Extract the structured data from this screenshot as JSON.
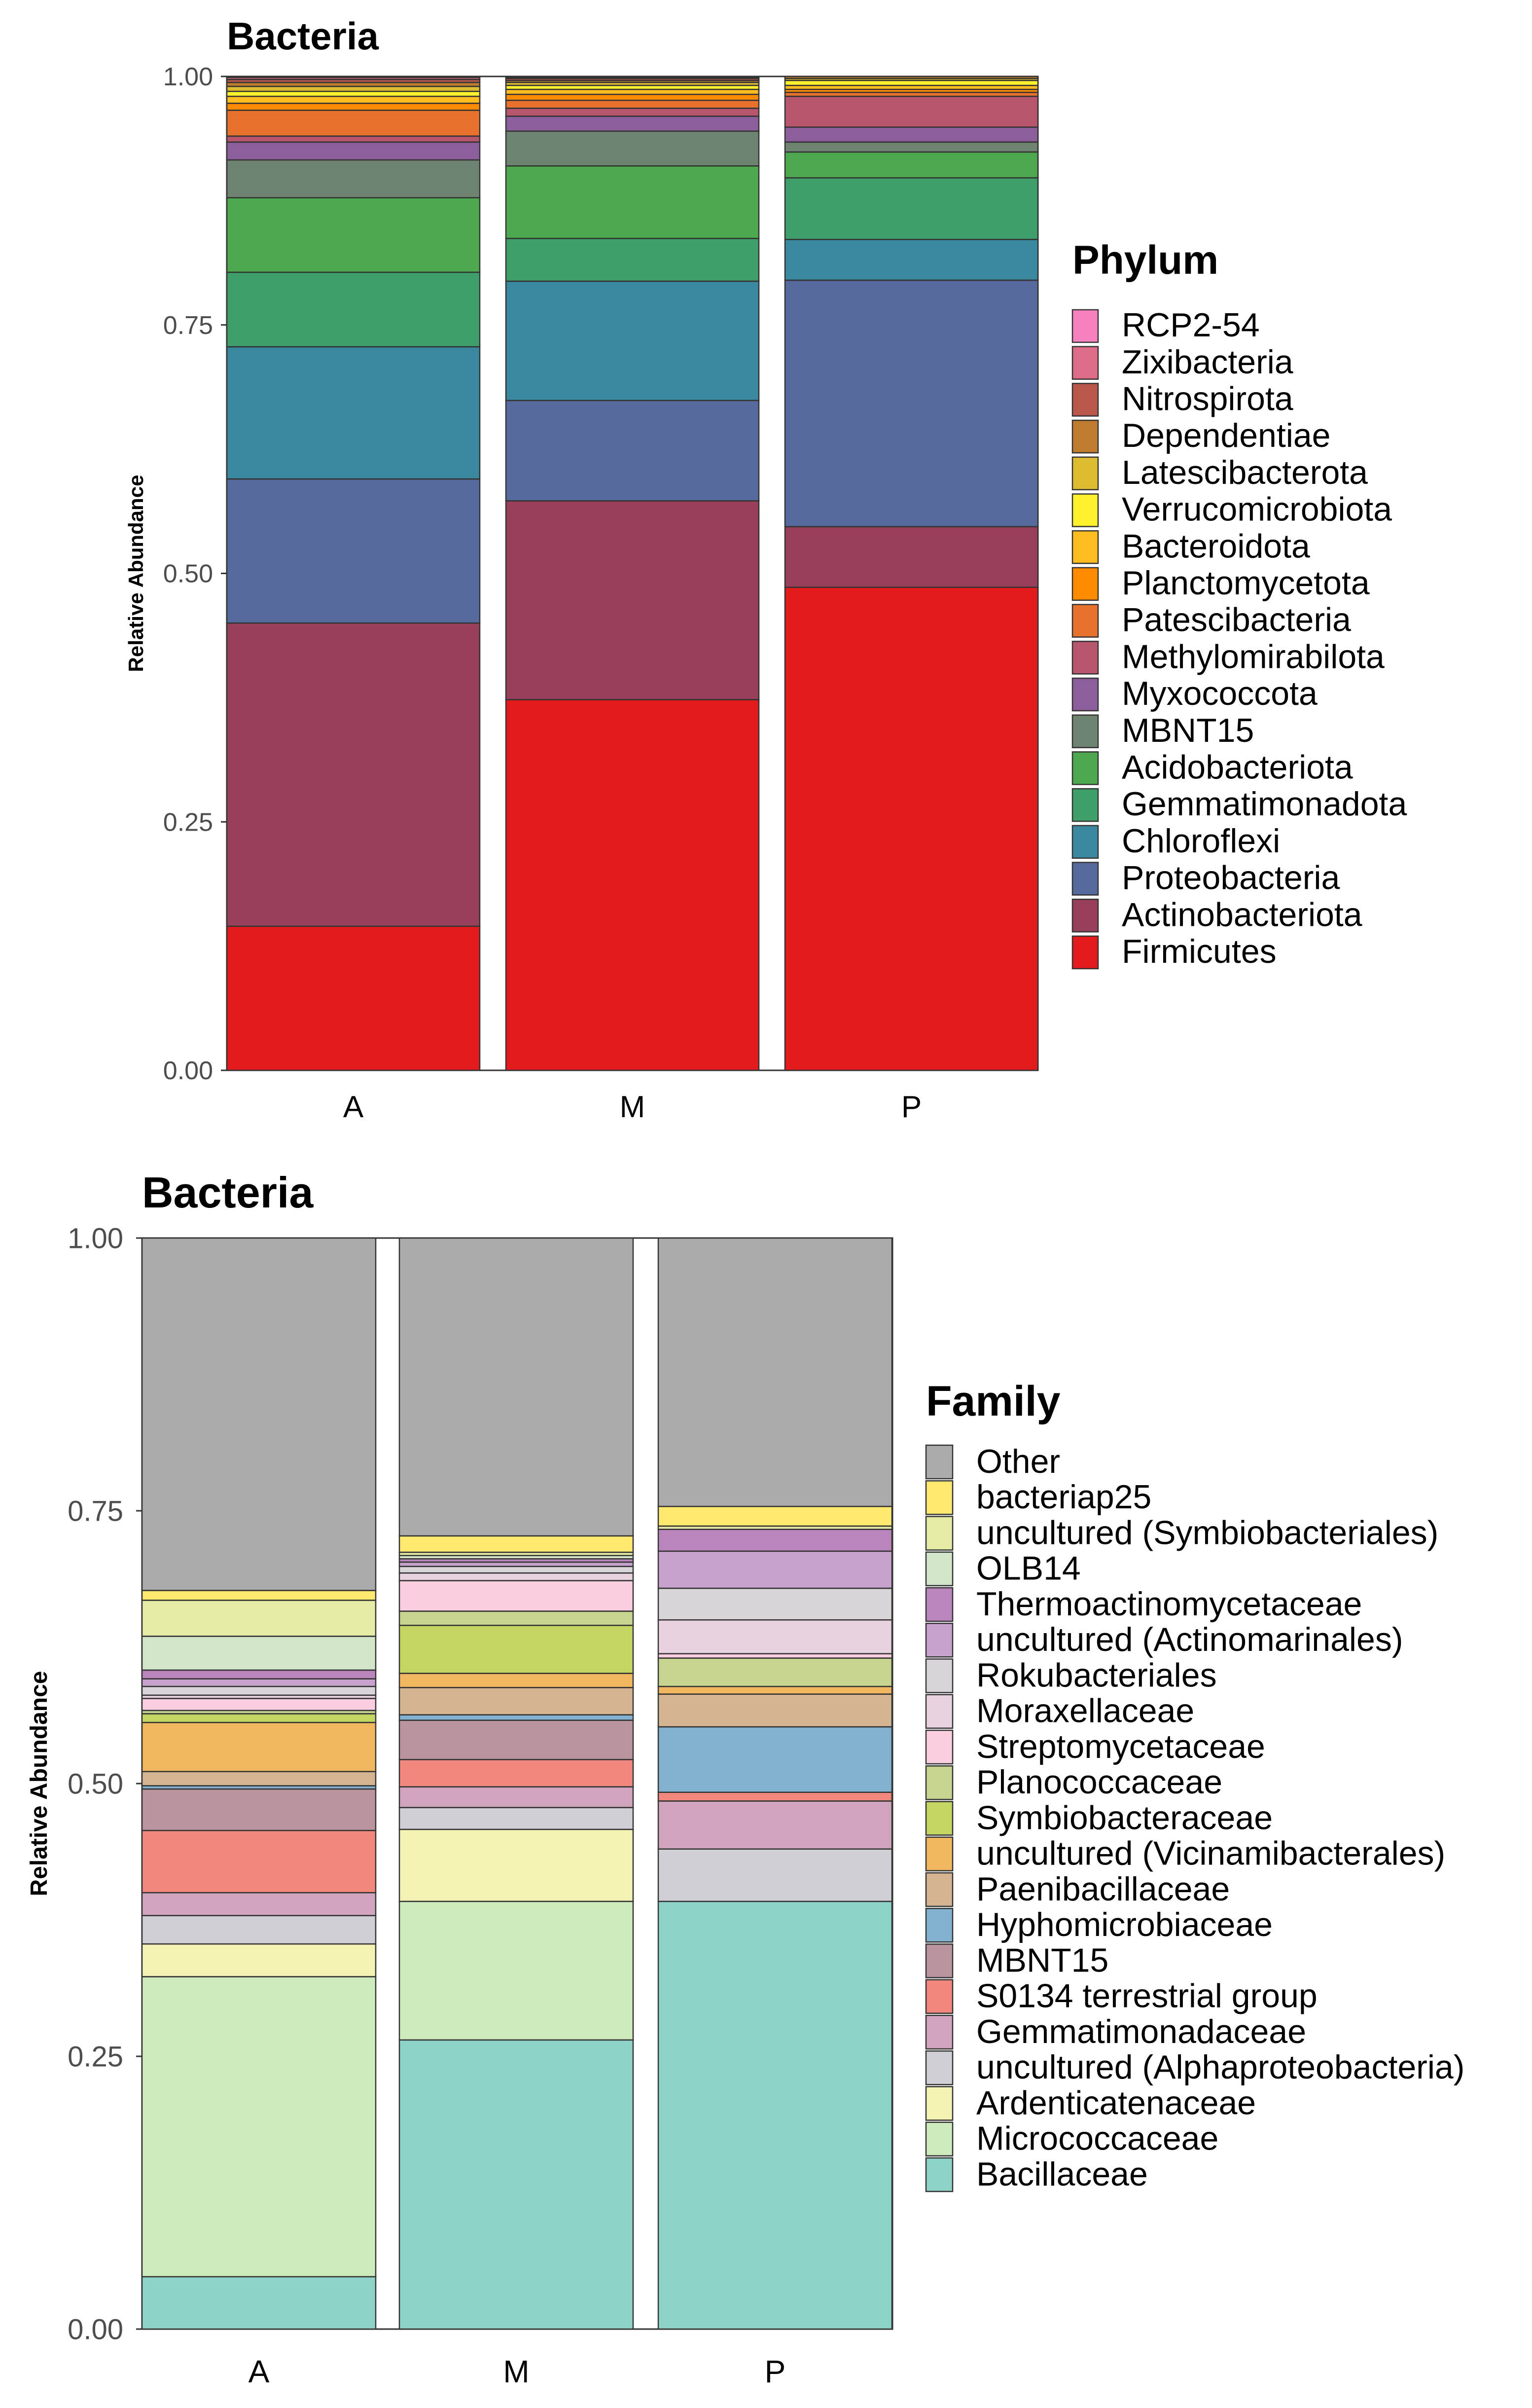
{
  "chart_data": [
    {
      "type": "bar",
      "stacked": true,
      "title": "Bacteria",
      "xlabel": "",
      "ylabel": "Relative Abundance",
      "ylim": [
        0,
        1
      ],
      "yticks": [
        "0.00",
        "0.25",
        "0.50",
        "0.75",
        "1.00"
      ],
      "categories": [
        "A",
        "M",
        "P"
      ],
      "legend_title": "Phylum",
      "legend_position": "right",
      "series": [
        {
          "name": "Firmicutes",
          "color": "#E41A1C",
          "values": [
            0.145,
            0.373,
            0.486
          ]
        },
        {
          "name": "Actinobacteriota",
          "color": "#98405A",
          "values": [
            0.305,
            0.2,
            0.061
          ]
        },
        {
          "name": "Proteobacteria",
          "color": "#566A9E",
          "values": [
            0.145,
            0.101,
            0.248
          ]
        },
        {
          "name": "Chloroflexi",
          "color": "#3A89A0",
          "values": [
            0.133,
            0.12,
            0.041
          ]
        },
        {
          "name": "Gemmatimonadota",
          "color": "#3F9F6B",
          "values": [
            0.075,
            0.043,
            0.062
          ]
        },
        {
          "name": "Acidobacteriota",
          "color": "#4DA950",
          "values": [
            0.075,
            0.073,
            0.026
          ]
        },
        {
          "name": "MBNT15",
          "color": "#6E8370",
          "values": [
            0.038,
            0.035,
            0.01
          ]
        },
        {
          "name": "Myxococcota",
          "color": "#8D5E9C",
          "values": [
            0.018,
            0.015,
            0.015
          ]
        },
        {
          "name": "Methylomirabilota",
          "color": "#B7566C",
          "values": [
            0.006,
            0.008,
            0.031
          ]
        },
        {
          "name": "Patescibacteria",
          "color": "#E7722D",
          "values": [
            0.026,
            0.008,
            0.004
          ]
        },
        {
          "name": "Planctomycetota",
          "color": "#FF8C00",
          "values": [
            0.007,
            0.006,
            0.003
          ]
        },
        {
          "name": "Bacteroidota",
          "color": "#FFBC1E",
          "values": [
            0.007,
            0.005,
            0.004
          ]
        },
        {
          "name": "Verrucomicrobiota",
          "color": "#FFF22D",
          "values": [
            0.005,
            0.004,
            0.005
          ]
        },
        {
          "name": "Latescibacterota",
          "color": "#DEBC32",
          "values": [
            0.005,
            0.003,
            0.002
          ]
        },
        {
          "name": "Dependentiae",
          "color": "#BF7C2F",
          "values": [
            0.004,
            0.002,
            0.002
          ]
        },
        {
          "name": "Nitrospirota",
          "color": "#B8584A",
          "values": [
            0.003,
            0.002,
            0.0
          ]
        },
        {
          "name": "Zixibacteria",
          "color": "#DD6D87",
          "values": [
            0.002,
            0.001,
            0.0
          ]
        },
        {
          "name": "RCP2-54",
          "color": "#F781BF",
          "values": [
            0.001,
            0.001,
            0.0
          ]
        }
      ]
    },
    {
      "type": "bar",
      "stacked": true,
      "title": "Bacteria",
      "xlabel": "",
      "ylabel": "Relative Abundance",
      "ylim": [
        0,
        1
      ],
      "yticks": [
        "0.00",
        "0.25",
        "0.50",
        "0.75",
        "1.00"
      ],
      "categories": [
        "A",
        "M",
        "P"
      ],
      "legend_title": "Family",
      "legend_position": "right",
      "series": [
        {
          "name": "Bacillaceae",
          "color": "#8DD3C7",
          "values": [
            0.048,
            0.265,
            0.392
          ]
        },
        {
          "name": "Micrococcaceae",
          "color": "#CDEBBD",
          "values": [
            0.275,
            0.127,
            0.0
          ]
        },
        {
          "name": "Ardenticatenaceae",
          "color": "#F2F2B4",
          "values": [
            0.03,
            0.066,
            0.0
          ]
        },
        {
          "name": "uncultured (Alphaproteobacteria)",
          "color": "#D1CFD6",
          "values": [
            0.026,
            0.02,
            0.048
          ]
        },
        {
          "name": "Gemmatimonadaceae",
          "color": "#D1A4BD",
          "values": [
            0.021,
            0.019,
            0.044
          ]
        },
        {
          "name": "S0134 terrestrial group",
          "color": "#F2877D",
          "values": [
            0.057,
            0.025,
            0.008
          ]
        },
        {
          "name": "MBNT15",
          "color": "#BA959D",
          "values": [
            0.038,
            0.036,
            0.0
          ]
        },
        {
          "name": "Hyphomicrobiaceae",
          "color": "#83B2D1",
          "values": [
            0.003,
            0.005,
            0.06
          ]
        },
        {
          "name": "Paenibacillaceae",
          "color": "#D5B492",
          "values": [
            0.013,
            0.025,
            0.03
          ]
        },
        {
          "name": "uncultured (Vicinamibacterales)",
          "color": "#F0B660",
          "values": [
            0.045,
            0.013,
            0.007
          ]
        },
        {
          "name": "Symbiobacteraceae",
          "color": "#C4D661",
          "values": [
            0.008,
            0.044,
            0.0
          ]
        },
        {
          "name": "Planococcaceae",
          "color": "#C5D58F",
          "values": [
            0.003,
            0.013,
            0.026
          ]
        },
        {
          "name": "Streptomycetaceae",
          "color": "#F8CEE0",
          "values": [
            0.011,
            0.028,
            0.004
          ]
        },
        {
          "name": "Moraxellaceae",
          "color": "#E8D2E0",
          "values": [
            0.003,
            0.007,
            0.031
          ]
        },
        {
          "name": "Rokubacteriales",
          "color": "#D8D4DA",
          "values": [
            0.008,
            0.006,
            0.029
          ]
        },
        {
          "name": "uncultured (Actinomarinales)",
          "color": "#C6A2CC",
          "values": [
            0.007,
            0.004,
            0.034
          ]
        },
        {
          "name": "Thermoactinomycetaceae",
          "color": "#BA85BD",
          "values": [
            0.008,
            0.003,
            0.02
          ]
        },
        {
          "name": "OLB14",
          "color": "#D2E5C8",
          "values": [
            0.031,
            0.003,
            0.0
          ]
        },
        {
          "name": "uncultured (Symbiobacteriales)",
          "color": "#E6EBA4",
          "values": [
            0.033,
            0.003,
            0.003
          ]
        },
        {
          "name": "bacteriap25",
          "color": "#FDE96F",
          "values": [
            0.009,
            0.015,
            0.018
          ]
        },
        {
          "name": "Other",
          "color": "#ABABAB",
          "values": [
            0.323,
            0.273,
            0.246
          ]
        }
      ]
    }
  ]
}
